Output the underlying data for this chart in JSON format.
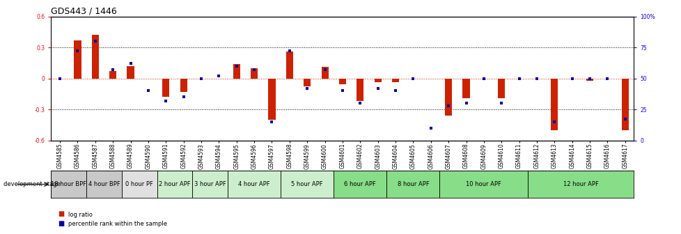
{
  "title": "GDS443 / 1446",
  "samples": [
    "GSM4585",
    "GSM4586",
    "GSM4587",
    "GSM4588",
    "GSM4589",
    "GSM4590",
    "GSM4591",
    "GSM4592",
    "GSM4593",
    "GSM4594",
    "GSM4595",
    "GSM4596",
    "GSM4597",
    "GSM4598",
    "GSM4599",
    "GSM4600",
    "GSM4601",
    "GSM4602",
    "GSM4603",
    "GSM4604",
    "GSM4605",
    "GSM4606",
    "GSM4607",
    "GSM4608",
    "GSM4609",
    "GSM4610",
    "GSM4611",
    "GSM4612",
    "GSM4613",
    "GSM4614",
    "GSM4615",
    "GSM4616",
    "GSM4617"
  ],
  "log_ratio": [
    0.0,
    0.37,
    0.42,
    0.07,
    0.12,
    0.0,
    -0.18,
    -0.13,
    0.0,
    0.0,
    0.14,
    0.1,
    -0.4,
    0.26,
    -0.08,
    0.11,
    -0.06,
    -0.22,
    -0.04,
    -0.04,
    0.0,
    0.0,
    -0.36,
    -0.19,
    0.0,
    -0.19,
    0.0,
    0.0,
    -0.5,
    0.0,
    -0.02,
    0.0,
    -0.5
  ],
  "percentile": [
    50,
    72,
    80,
    57,
    62,
    40,
    32,
    35,
    50,
    52,
    60,
    57,
    15,
    72,
    42,
    57,
    40,
    30,
    42,
    40,
    50,
    10,
    28,
    30,
    50,
    30,
    50,
    50,
    15,
    50,
    50,
    50,
    17
  ],
  "stages": [
    {
      "label": "18 hour BPF",
      "start": 0,
      "end": 2,
      "color": "#c8c8c8"
    },
    {
      "label": "4 hour BPF",
      "start": 2,
      "end": 4,
      "color": "#c8c8c8"
    },
    {
      "label": "0 hour PF",
      "start": 4,
      "end": 6,
      "color": "#e0e0e0"
    },
    {
      "label": "2 hour APF",
      "start": 6,
      "end": 8,
      "color": "#cceecc"
    },
    {
      "label": "3 hour APF",
      "start": 8,
      "end": 10,
      "color": "#cceecc"
    },
    {
      "label": "4 hour APF",
      "start": 10,
      "end": 13,
      "color": "#cceecc"
    },
    {
      "label": "5 hour APF",
      "start": 13,
      "end": 16,
      "color": "#cceecc"
    },
    {
      "label": "6 hour APF",
      "start": 16,
      "end": 19,
      "color": "#88dd88"
    },
    {
      "label": "8 hour APF",
      "start": 19,
      "end": 22,
      "color": "#88dd88"
    },
    {
      "label": "10 hour APF",
      "start": 22,
      "end": 27,
      "color": "#88dd88"
    },
    {
      "label": "12 hour APF",
      "start": 27,
      "end": 33,
      "color": "#88dd88"
    }
  ],
  "ylim": [
    -0.6,
    0.6
  ],
  "yticks_left": [
    -0.6,
    -0.3,
    0.0,
    0.3,
    0.6
  ],
  "yticks_right": [
    0,
    25,
    50,
    75,
    100
  ],
  "bar_color": "#cc2200",
  "dot_color": "#0000aa",
  "zero_line_color": "#cc2200",
  "title_fontsize": 9,
  "tick_fontsize": 5.5,
  "stage_fontsize": 6,
  "bar_width": 0.4
}
